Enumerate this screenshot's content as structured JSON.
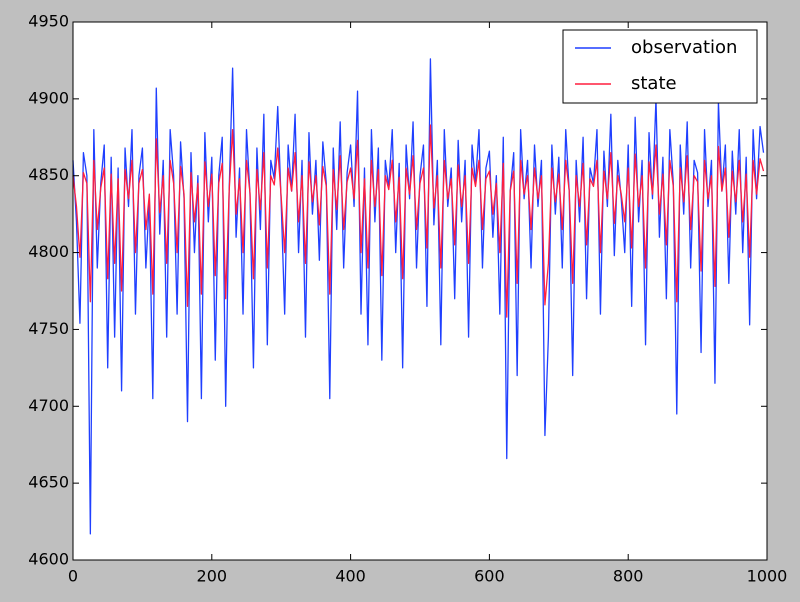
{
  "chart_data": {
    "type": "line",
    "x": [
      0,
      5,
      10,
      15,
      20,
      25,
      30,
      35,
      40,
      45,
      50,
      55,
      60,
      65,
      70,
      75,
      80,
      85,
      90,
      95,
      100,
      105,
      110,
      115,
      120,
      125,
      130,
      135,
      140,
      145,
      150,
      155,
      160,
      165,
      170,
      175,
      180,
      185,
      190,
      195,
      200,
      205,
      210,
      215,
      220,
      225,
      230,
      235,
      240,
      245,
      250,
      255,
      260,
      265,
      270,
      275,
      280,
      285,
      290,
      295,
      300,
      305,
      310,
      315,
      320,
      325,
      330,
      335,
      340,
      345,
      350,
      355,
      360,
      365,
      370,
      375,
      380,
      385,
      390,
      395,
      400,
      405,
      410,
      415,
      420,
      425,
      430,
      435,
      440,
      445,
      450,
      455,
      460,
      465,
      470,
      475,
      480,
      485,
      490,
      495,
      500,
      505,
      510,
      515,
      520,
      525,
      530,
      535,
      540,
      545,
      550,
      555,
      560,
      565,
      570,
      575,
      580,
      585,
      590,
      595,
      600,
      605,
      610,
      615,
      620,
      625,
      630,
      635,
      640,
      645,
      650,
      655,
      660,
      665,
      670,
      675,
      680,
      685,
      690,
      695,
      700,
      705,
      710,
      715,
      720,
      725,
      730,
      735,
      740,
      745,
      750,
      755,
      760,
      765,
      770,
      775,
      780,
      785,
      790,
      795,
      800,
      805,
      810,
      815,
      820,
      825,
      830,
      835,
      840,
      845,
      850,
      855,
      860,
      865,
      870,
      875,
      880,
      885,
      890,
      895,
      900,
      905,
      910,
      915,
      920,
      925,
      930,
      935,
      940,
      945,
      950,
      955,
      960,
      965,
      970,
      975,
      980,
      985,
      990,
      995
    ],
    "series": [
      {
        "name": "observation",
        "color": "#1f3fff",
        "values": [
          4860,
          4820,
          4754,
          4865,
          4850,
          4617,
          4880,
          4790,
          4845,
          4870,
          4725,
          4862,
          4745,
          4855,
          4710,
          4868,
          4830,
          4880,
          4760,
          4850,
          4868,
          4790,
          4835,
          4705,
          4907,
          4812,
          4860,
          4745,
          4880,
          4850,
          4760,
          4872,
          4835,
          4690,
          4865,
          4800,
          4850,
          4705,
          4878,
          4820,
          4862,
          4730,
          4850,
          4875,
          4700,
          4840,
          4920,
          4810,
          4855,
          4760,
          4880,
          4838,
          4725,
          4868,
          4815,
          4890,
          4740,
          4860,
          4848,
          4895,
          4832,
          4760,
          4870,
          4840,
          4890,
          4800,
          4860,
          4745,
          4878,
          4825,
          4860,
          4795,
          4872,
          4845,
          4705,
          4868,
          4815,
          4885,
          4790,
          4852,
          4870,
          4830,
          4905,
          4760,
          4855,
          4740,
          4880,
          4820,
          4868,
          4730,
          4860,
          4842,
          4880,
          4800,
          4858,
          4725,
          4870,
          4835,
          4885,
          4790,
          4850,
          4870,
          4765,
          4926,
          4818,
          4860,
          4740,
          4880,
          4830,
          4855,
          4770,
          4873,
          4820,
          4860,
          4745,
          4870,
          4845,
          4880,
          4790,
          4855,
          4866,
          4810,
          4850,
          4760,
          4875,
          4666,
          4840,
          4865,
          4720,
          4880,
          4835,
          4860,
          4790,
          4870,
          4830,
          4860,
          4681,
          4745,
          4870,
          4825,
          4862,
          4790,
          4880,
          4840,
          4720,
          4860,
          4820,
          4875,
          4770,
          4855,
          4845,
          4880,
          4760,
          4866,
          4830,
          4890,
          4798,
          4860,
          4835,
          4800,
          4870,
          4765,
          4888,
          4820,
          4860,
          4740,
          4878,
          4835,
          4900,
          4810,
          4862,
          4770,
          4880,
          4845,
          4695,
          4870,
          4825,
          4885,
          4790,
          4860,
          4852,
          4735,
          4880,
          4830,
          4860,
          4715,
          4898,
          4840,
          4870,
          4780,
          4866,
          4825,
          4880,
          4800,
          4862,
          4753,
          4880,
          4835,
          4882,
          4865
        ]
      },
      {
        "name": "state",
        "color": "#ff1f3f",
        "values": [
          4850,
          4830,
          4797,
          4852,
          4845,
          4768,
          4860,
          4815,
          4842,
          4855,
          4783,
          4851,
          4793,
          4848,
          4775,
          4854,
          4835,
          4860,
          4800,
          4845,
          4854,
          4815,
          4838,
          4773,
          4874,
          4826,
          4850,
          4793,
          4860,
          4845,
          4800,
          4856,
          4838,
          4765,
          4852,
          4820,
          4845,
          4773,
          4859,
          4830,
          4851,
          4785,
          4845,
          4858,
          4770,
          4840,
          4880,
          4825,
          4848,
          4800,
          4860,
          4839,
          4783,
          4854,
          4828,
          4865,
          4790,
          4850,
          4844,
          4868,
          4836,
          4800,
          4855,
          4840,
          4865,
          4820,
          4850,
          4793,
          4859,
          4833,
          4850,
          4818,
          4856,
          4843,
          4773,
          4854,
          4828,
          4863,
          4815,
          4846,
          4855,
          4835,
          4873,
          4800,
          4848,
          4790,
          4860,
          4830,
          4854,
          4785,
          4850,
          4841,
          4860,
          4820,
          4849,
          4783,
          4855,
          4838,
          4863,
          4815,
          4845,
          4855,
          4803,
          4883,
          4829,
          4850,
          4790,
          4860,
          4835,
          4848,
          4805,
          4857,
          4830,
          4850,
          4793,
          4855,
          4843,
          4860,
          4815,
          4848,
          4853,
          4825,
          4845,
          4800,
          4858,
          4758,
          4840,
          4853,
          4780,
          4860,
          4838,
          4850,
          4815,
          4855,
          4835,
          4850,
          4766,
          4793,
          4855,
          4833,
          4851,
          4815,
          4860,
          4840,
          4780,
          4850,
          4830,
          4858,
          4805,
          4848,
          4843,
          4860,
          4800,
          4853,
          4835,
          4865,
          4819,
          4850,
          4838,
          4820,
          4855,
          4803,
          4864,
          4830,
          4850,
          4790,
          4859,
          4838,
          4870,
          4825,
          4851,
          4805,
          4860,
          4843,
          4768,
          4855,
          4833,
          4863,
          4815,
          4850,
          4846,
          4788,
          4860,
          4835,
          4850,
          4778,
          4869,
          4840,
          4855,
          4810,
          4853,
          4833,
          4860,
          4820,
          4851,
          4797,
          4860,
          4838,
          4861,
          4853
        ]
      }
    ],
    "xlim": [
      0,
      1000
    ],
    "xticks": [
      0,
      200,
      400,
      600,
      800,
      1000
    ],
    "ylim": [
      4600,
      4950
    ],
    "yticks": [
      4600,
      4650,
      4700,
      4750,
      4800,
      4850,
      4900,
      4950
    ],
    "grid": false,
    "legend": "upper right"
  }
}
